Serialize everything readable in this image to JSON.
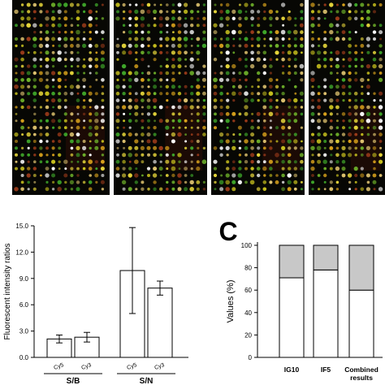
{
  "panel_b": {
    "ylabel": "Fluorescent intensity ratios",
    "ylim": [
      0,
      15
    ],
    "yticks": [
      "0.0",
      "3.0",
      "6.0",
      "9.0",
      "12.0",
      "15.0"
    ],
    "groups": [
      {
        "label": "S/B",
        "bars": [
          {
            "label": "Cy5",
            "value": 2.1,
            "err": 0.45
          },
          {
            "label": "Cy3",
            "value": 2.3,
            "err": 0.55
          }
        ]
      },
      {
        "label": "S/N",
        "bars": [
          {
            "label": "Cy5",
            "value": 9.9,
            "err": 4.9
          },
          {
            "label": "Cy3",
            "value": 7.9,
            "err": 0.8
          }
        ]
      }
    ]
  },
  "panel_c": {
    "letter": "C",
    "ylabel": "Values (%)",
    "ylim": [
      0,
      100
    ],
    "yticks": [
      "0",
      "20",
      "40",
      "60",
      "80",
      "100"
    ],
    "categories": [
      "IG10",
      "IF5",
      "Combined results"
    ],
    "category_lines": [
      [
        "IG10"
      ],
      [
        "IF5"
      ],
      [
        "Combined",
        "results"
      ]
    ],
    "series": [
      {
        "color": "#ffffff",
        "values": [
          71,
          78,
          60
        ]
      },
      {
        "color": "#c8c8c8",
        "values": [
          29,
          22,
          40
        ]
      }
    ]
  },
  "chart_data": [
    {
      "type": "bar",
      "categories": [
        "S/B Cy5",
        "S/B Cy3",
        "S/N Cy5",
        "S/N Cy3"
      ],
      "values": [
        2.1,
        2.3,
        9.9,
        7.9
      ],
      "errors": [
        0.45,
        0.55,
        4.9,
        0.8
      ],
      "ylabel": "Fluorescent intensity ratios",
      "ylim": [
        0,
        15
      ],
      "grid": false
    },
    {
      "type": "bar",
      "stacked": true,
      "categories": [
        "IG10",
        "IF5",
        "Combined results"
      ],
      "series": [
        {
          "values": [
            71,
            78,
            60
          ]
        },
        {
          "values": [
            29,
            22,
            40
          ]
        }
      ],
      "ylabel": "Values (%)",
      "ylim": [
        0,
        100
      ],
      "grid": false
    }
  ],
  "colors": {
    "array_background": "#070704",
    "spot_palette": [
      "#d9a21c",
      "#c9c21e",
      "#e4d43a",
      "#6fb32a",
      "#3fa82a",
      "#e0c470",
      "#ffffff",
      "#9a3a1a"
    ]
  }
}
